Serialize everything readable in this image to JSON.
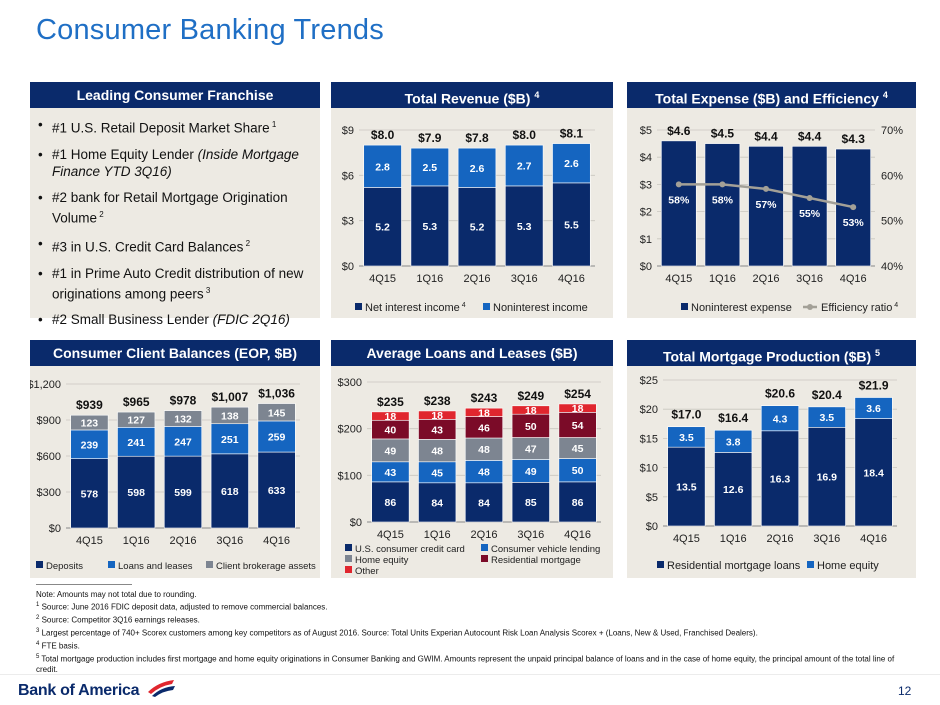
{
  "page": {
    "title": "Consumer Banking Trends",
    "page_number": "12",
    "logo_text": "Bank of America",
    "colors": {
      "navy": "#0a2a6b",
      "blue": "#1565c0",
      "gray": "#7d8591",
      "red": "#e0262e",
      "maroon": "#7b0b28",
      "accent": "#1f6fc5"
    }
  },
  "franchise": {
    "header": "Leading Consumer Franchise",
    "bullets": [
      {
        "text": "#1 U.S. Retail Deposit Market Share",
        "italic": "",
        "after": "",
        "sup": "1"
      },
      {
        "text": "#1 Home Equity Lender ",
        "italic": "(Inside Mortgage Finance YTD 3Q16)",
        "after": "",
        "sup": ""
      },
      {
        "text": "#2 bank for Retail Mortgage Origination Volume",
        "italic": "",
        "after": "",
        "sup": "2"
      },
      {
        "text": "#3 in U.S. Credit Card Balances",
        "italic": "",
        "after": "",
        "sup": "2"
      },
      {
        "text": "#1 in Prime Auto Credit distribution of new originations among peers",
        "italic": "",
        "after": "",
        "sup": "3"
      },
      {
        "text": "#2 Small Business Lender ",
        "italic": "(FDIC 2Q16)",
        "after": "",
        "sup": ""
      }
    ]
  },
  "chart_data": [
    {
      "id": "revenue",
      "type": "bar",
      "title": "Total Revenue ($B)",
      "title_sup": "4",
      "categories": [
        "4Q15",
        "1Q16",
        "2Q16",
        "3Q16",
        "4Q16"
      ],
      "series": [
        {
          "name": "Net interest income",
          "name_sup": "4",
          "values": [
            5.2,
            5.3,
            5.2,
            5.3,
            5.5
          ],
          "color": "#0a2a6b"
        },
        {
          "name": "Noninterest income",
          "name_sup": "",
          "values": [
            2.8,
            2.5,
            2.6,
            2.7,
            2.6
          ],
          "color": "#1565c0"
        }
      ],
      "totals": [
        "$8.0",
        "$7.9",
        "$7.8",
        "$8.0",
        "$8.1"
      ],
      "ylim": [
        0,
        9
      ],
      "yticks": [
        0,
        3,
        6,
        9
      ],
      "ytick_labels": [
        "$0",
        "$3",
        "$6",
        "$9"
      ],
      "legend": "bottom"
    },
    {
      "id": "expense",
      "type": "bar",
      "title": "Total Expense ($B) and Efficiency",
      "title_sup": "4",
      "categories": [
        "4Q15",
        "1Q16",
        "2Q16",
        "3Q16",
        "4Q16"
      ],
      "series": [
        {
          "name": "Noninterest expense",
          "name_sup": "",
          "values": [
            4.6,
            4.5,
            4.4,
            4.4,
            4.3
          ],
          "color": "#0a2a6b",
          "kind": "bar"
        },
        {
          "name": "Efficiency ratio",
          "name_sup": "4",
          "values": [
            58,
            58,
            57,
            55,
            53
          ],
          "color": "#a3a097",
          "kind": "line",
          "axis": "right"
        }
      ],
      "totals": [
        "$4.6",
        "$4.5",
        "$4.4",
        "$4.4",
        "$4.3"
      ],
      "line_labels": [
        "58%",
        "58%",
        "57%",
        "55%",
        "53%"
      ],
      "ylim": [
        0,
        5
      ],
      "yticks": [
        0,
        1,
        2,
        3,
        4,
        5
      ],
      "ytick_labels": [
        "$0",
        "$1",
        "$2",
        "$3",
        "$4",
        "$5"
      ],
      "y2lim": [
        40,
        70
      ],
      "y2ticks": [
        40,
        50,
        60,
        70
      ],
      "y2tick_labels": [
        "40%",
        "50%",
        "60%",
        "70%"
      ],
      "legend": "bottom"
    },
    {
      "id": "balances",
      "type": "bar",
      "title": "Consumer Client Balances (EOP, $B)",
      "title_sup": "",
      "categories": [
        "4Q15",
        "1Q16",
        "2Q16",
        "3Q16",
        "4Q16"
      ],
      "series": [
        {
          "name": "Deposits",
          "name_sup": "",
          "values": [
            578,
            598,
            599,
            618,
            633
          ],
          "color": "#0a2a6b"
        },
        {
          "name": "Loans and leases",
          "name_sup": "",
          "values": [
            239,
            241,
            247,
            251,
            259
          ],
          "color": "#1565c0"
        },
        {
          "name": "Client brokerage assets",
          "name_sup": "",
          "values": [
            123,
            127,
            132,
            138,
            145
          ],
          "color": "#7d8591"
        }
      ],
      "totals": [
        "$939",
        "$965",
        "$978",
        "$1,007",
        "$1,036"
      ],
      "ylim": [
        0,
        1200
      ],
      "yticks": [
        0,
        300,
        600,
        900,
        1200
      ],
      "ytick_labels": [
        "$0",
        "$300",
        "$600",
        "$900",
        "$1,200"
      ],
      "legend": "bottom"
    },
    {
      "id": "loans",
      "type": "bar",
      "title": "Average Loans and Leases ($B)",
      "title_sup": "",
      "categories": [
        "4Q15",
        "1Q16",
        "2Q16",
        "3Q16",
        "4Q16"
      ],
      "series": [
        {
          "name": "U.S. consumer credit card",
          "name_sup": "",
          "values": [
            86,
            84,
            84,
            85,
            86
          ],
          "color": "#0a2a6b"
        },
        {
          "name": "Consumer vehicle lending",
          "name_sup": "",
          "values": [
            43,
            45,
            48,
            49,
            50
          ],
          "color": "#1565c0"
        },
        {
          "name": "Home equity",
          "name_sup": "",
          "values": [
            49,
            48,
            48,
            47,
            45
          ],
          "color": "#7d8591"
        },
        {
          "name": "Residential mortgage",
          "name_sup": "",
          "values": [
            40,
            43,
            46,
            50,
            54
          ],
          "color": "#7b0b28"
        },
        {
          "name": "Other",
          "name_sup": "",
          "values": [
            18,
            18,
            18,
            18,
            18
          ],
          "color": "#e0262e"
        }
      ],
      "totals": [
        "$235",
        "$238",
        "$243",
        "$249",
        "$254"
      ],
      "ylim": [
        0,
        300
      ],
      "yticks": [
        0,
        100,
        200,
        300
      ],
      "ytick_labels": [
        "$0",
        "$100",
        "$200",
        "$300"
      ],
      "legend": "bottom"
    },
    {
      "id": "mortgage",
      "type": "bar",
      "title": "Total Mortgage Production ($B)",
      "title_sup": "5",
      "categories": [
        "4Q15",
        "1Q16",
        "2Q16",
        "3Q16",
        "4Q16"
      ],
      "series": [
        {
          "name": "Residential mortgage loans",
          "name_sup": "",
          "values": [
            13.5,
            12.6,
            16.3,
            16.9,
            18.4
          ],
          "color": "#0a2a6b"
        },
        {
          "name": "Home equity",
          "name_sup": "",
          "values": [
            3.5,
            3.8,
            4.3,
            3.5,
            3.6
          ],
          "color": "#1565c0"
        }
      ],
      "totals": [
        "$17.0",
        "$16.4",
        "$20.6",
        "$20.4",
        "$21.9"
      ],
      "ylim": [
        0,
        25
      ],
      "yticks": [
        0,
        5,
        10,
        15,
        20,
        25
      ],
      "ytick_labels": [
        "$0",
        "$5",
        "$10",
        "$15",
        "$20",
        "$25"
      ],
      "legend": "bottom"
    }
  ],
  "notes": [
    {
      "sup": "",
      "text": "Note: Amounts may not total due to rounding."
    },
    {
      "sup": "1",
      "text": "Source: June 2016 FDIC deposit data, adjusted to remove commercial balances."
    },
    {
      "sup": "2",
      "text": "Source: Competitor 3Q16 earnings releases."
    },
    {
      "sup": "3",
      "text": "Largest percentage of 740+ Scorex customers among key competitors as of August 2016. Source: Total Units Experian Autocount Risk Loan Analysis Scorex + (Loans, New & Used, Franchised Dealers)."
    },
    {
      "sup": "4",
      "text": "FTE basis."
    },
    {
      "sup": "5",
      "text": "Total mortgage production includes first mortgage and home equity originations in Consumer Banking and GWIM. Amounts represent the unpaid principal balance of loans and in the case of home equity, the principal amount of the total line of credit."
    }
  ]
}
